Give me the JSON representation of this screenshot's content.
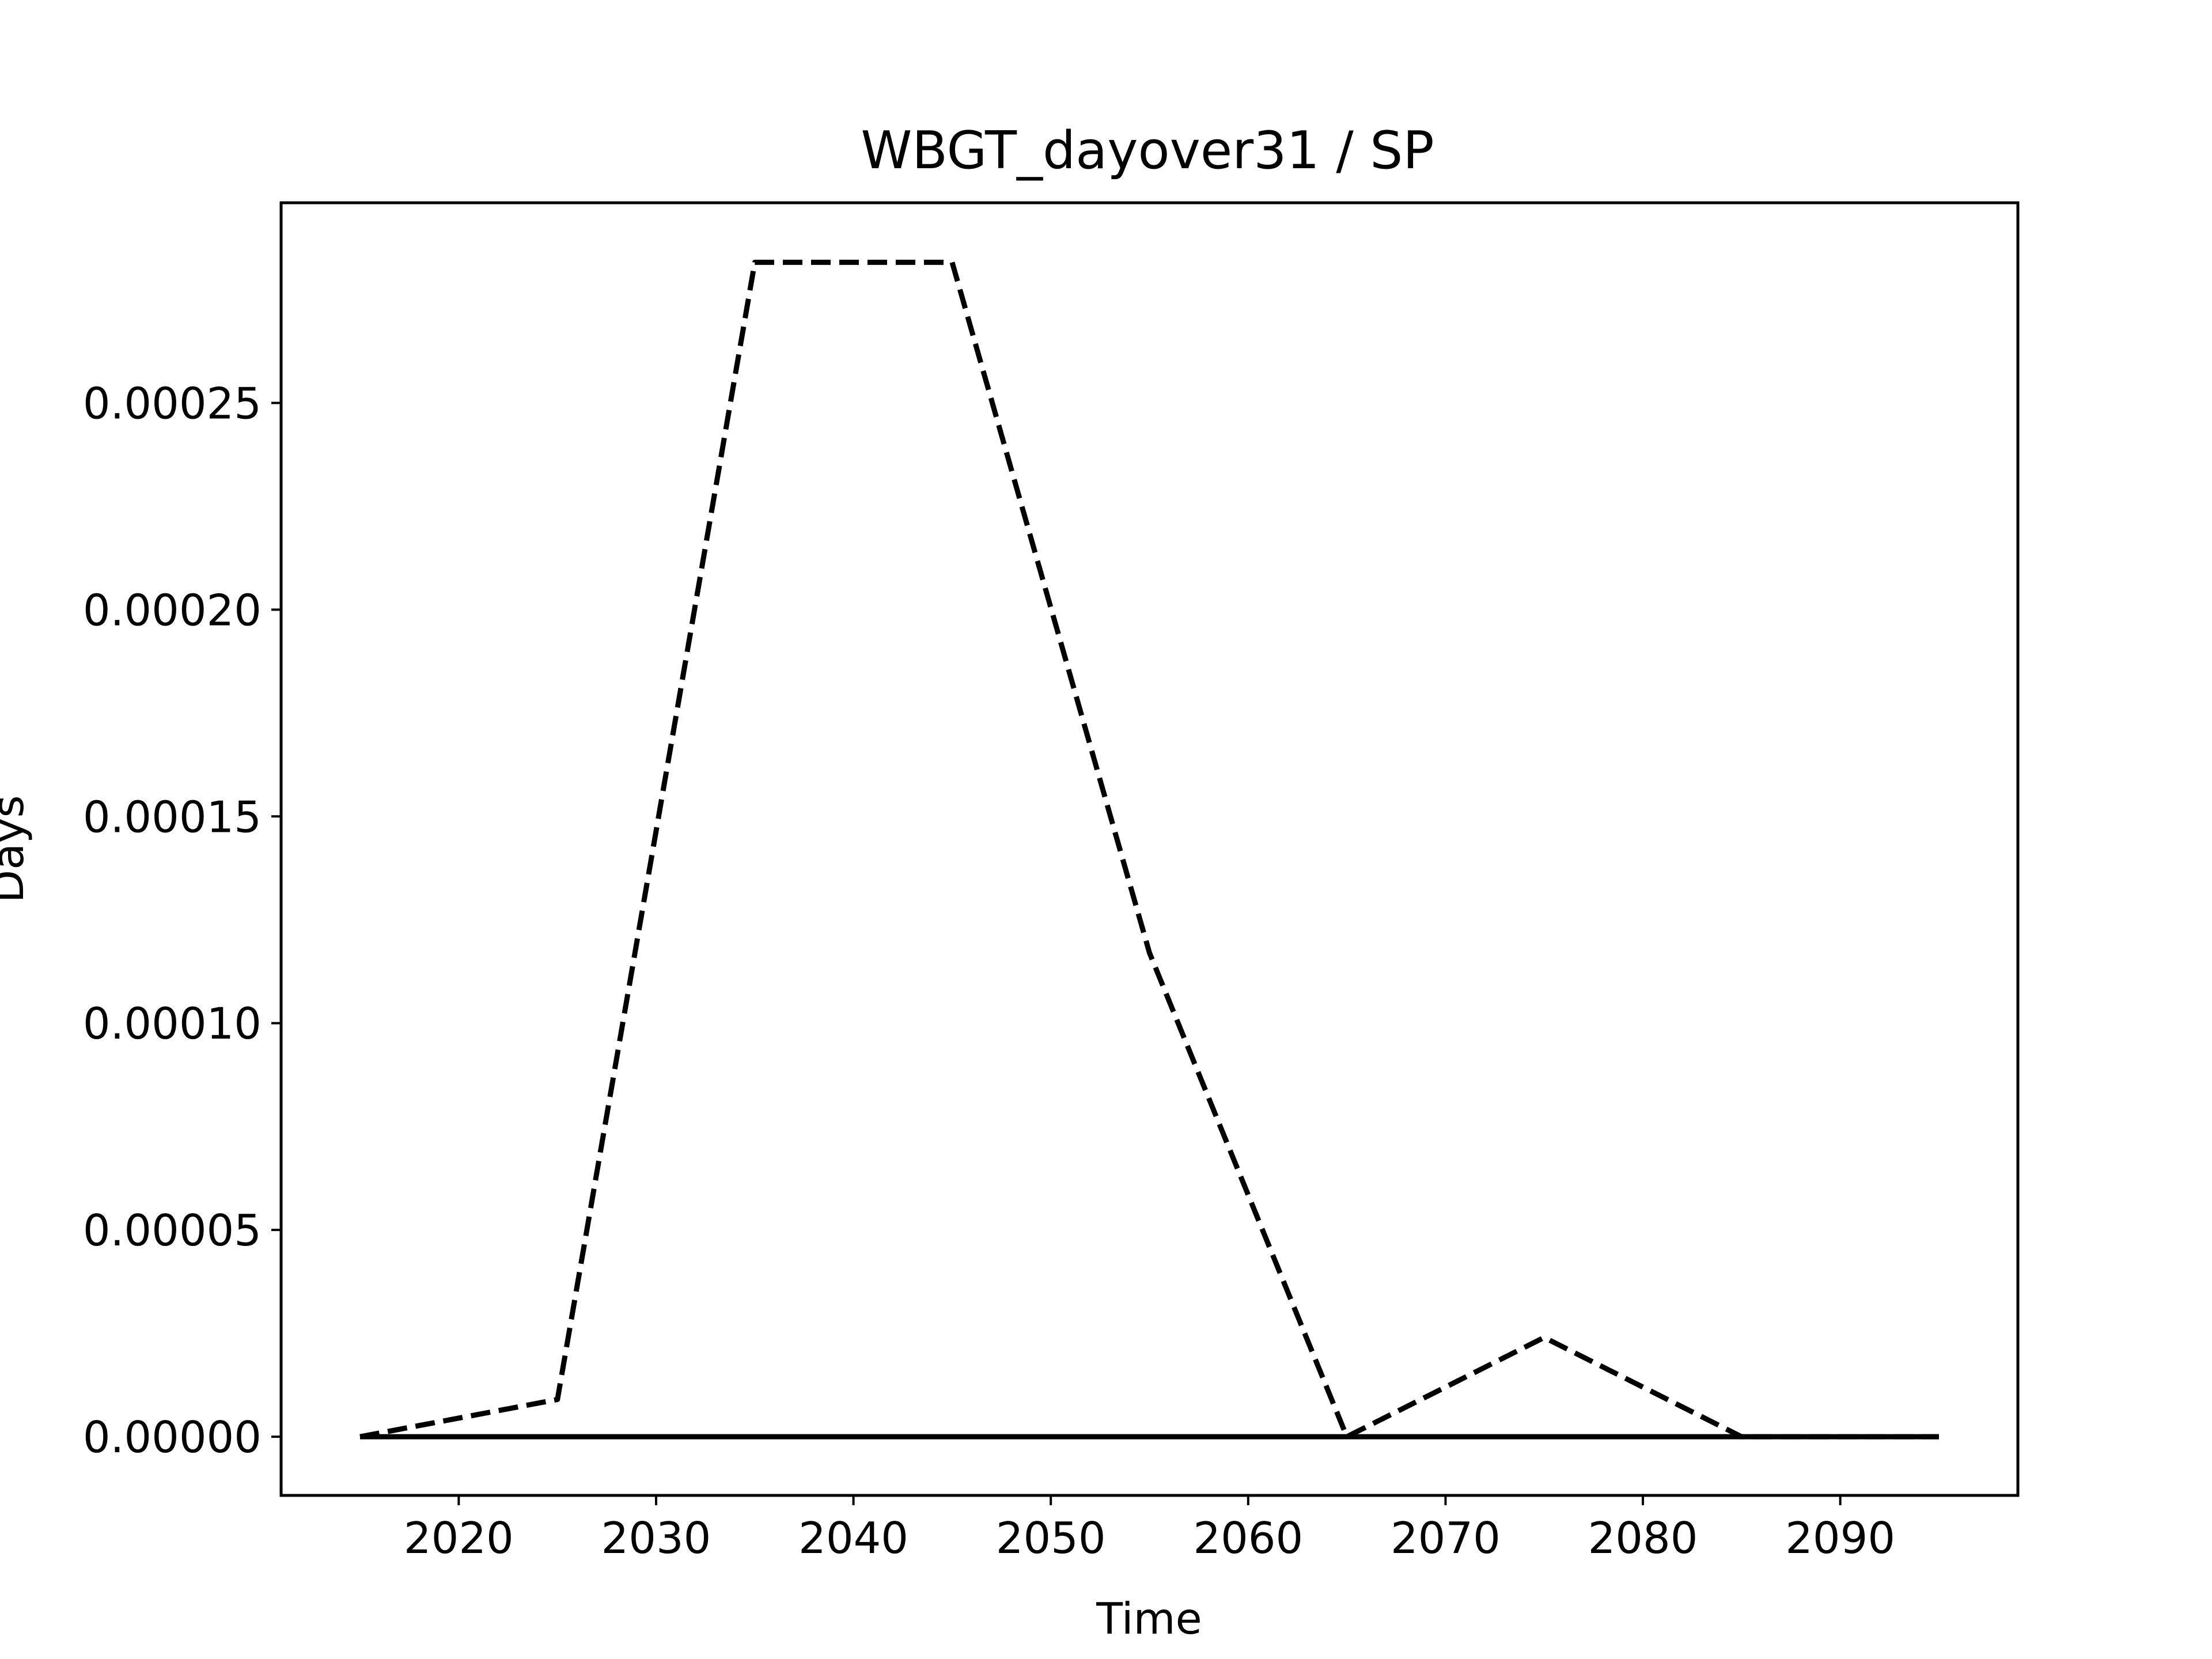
{
  "chart_data": {
    "type": "line",
    "title": "WBGT_dayover31 / SP",
    "xlabel": "Time",
    "ylabel": "Days",
    "xlim": [
      2011,
      2099
    ],
    "ylim": [
      -1.42e-05,
      0.0002984
    ],
    "xticks": [
      2020,
      2030,
      2040,
      2050,
      2060,
      2070,
      2080,
      2090
    ],
    "yticks": [
      0,
      5e-05,
      0.0001,
      0.00015,
      0.0002,
      0.00025
    ],
    "ytick_labels": [
      "0.00000",
      "0.00005",
      "0.00010",
      "0.00015",
      "0.00020",
      "0.00025"
    ],
    "grid": false,
    "series": [
      {
        "style": "dashed",
        "color": "#000000",
        "x": [
          2015,
          2025,
          2035,
          2045,
          2055,
          2065,
          2075,
          2085,
          2095
        ],
        "y": [
          0,
          9e-06,
          0.000284,
          0.000284,
          0.000117,
          0,
          2.4e-05,
          0,
          0
        ]
      },
      {
        "style": "solid",
        "color": "#000000",
        "x": [
          2015,
          2025,
          2035,
          2045,
          2055,
          2065,
          2075,
          2085,
          2095
        ],
        "y": [
          0,
          0,
          0,
          0,
          0,
          0,
          0,
          0,
          0
        ]
      }
    ]
  }
}
